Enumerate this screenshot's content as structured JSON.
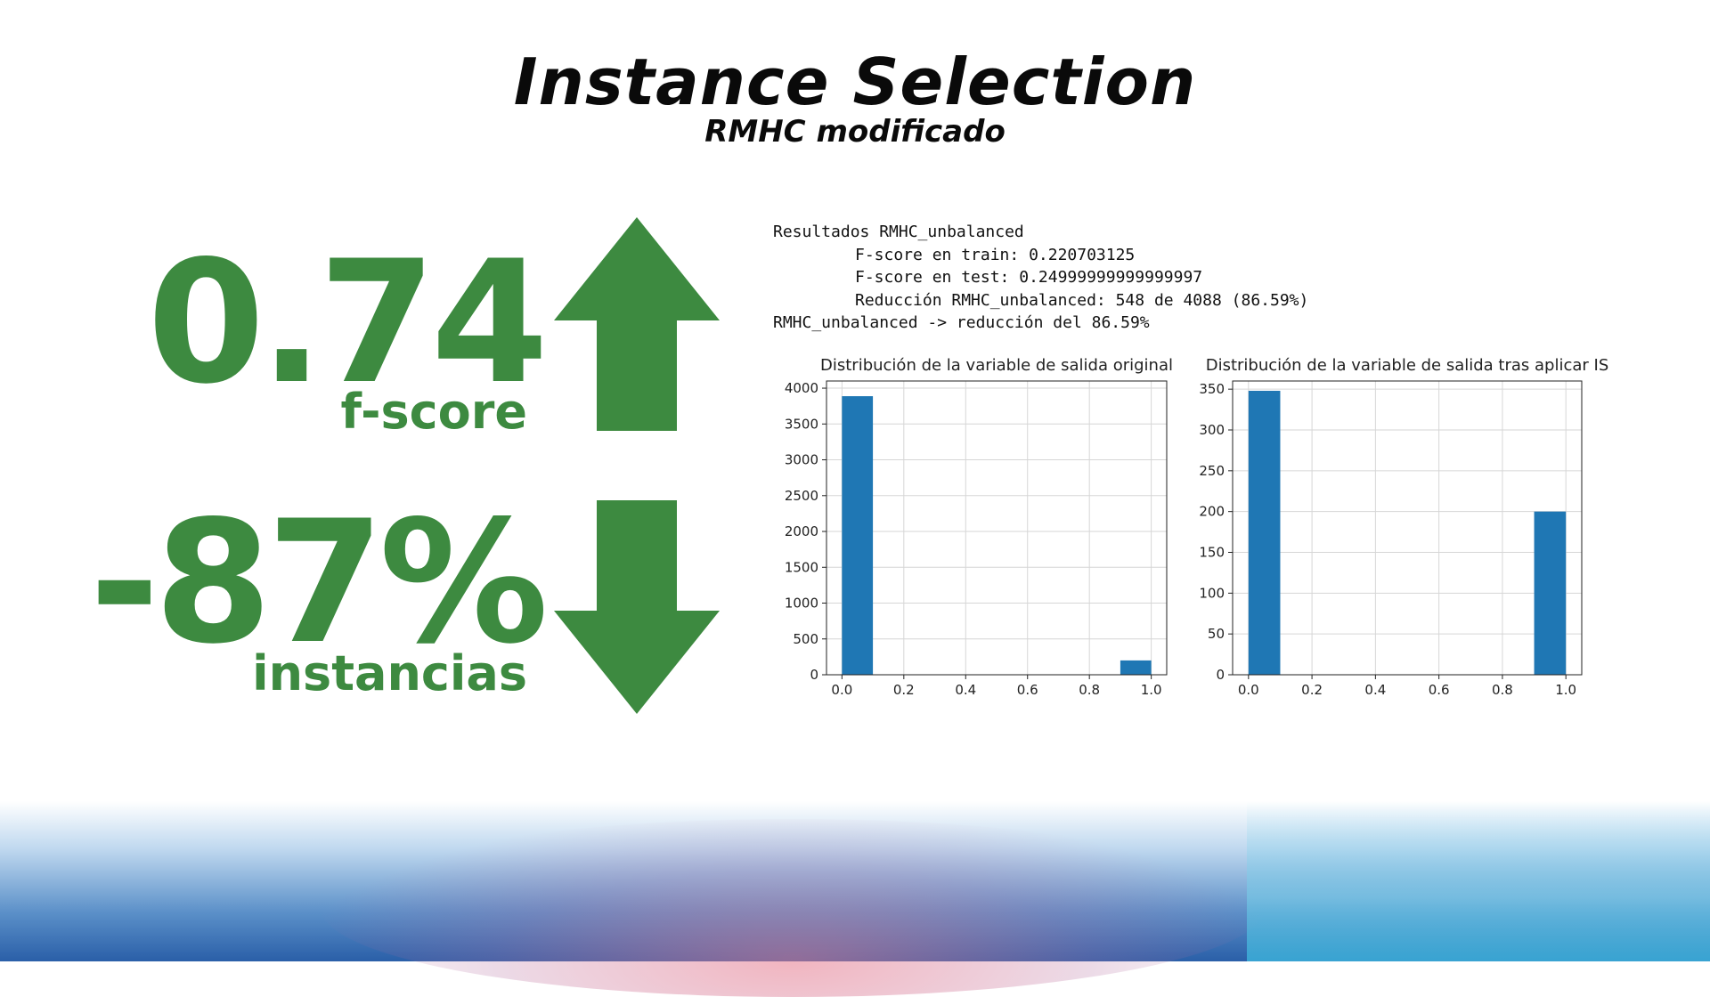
{
  "title": "Instance Selection",
  "subtitle": "RMHC modificado",
  "metrics": {
    "fscore_value": "0.74",
    "fscore_label": "f-score",
    "reduction_value": "-87%",
    "reduction_label": "instancias"
  },
  "console": {
    "line1": "Resultados RMHC_unbalanced",
    "line2": "F-score en train: 0.220703125",
    "line3": "F-score en test: 0.24999999999999997",
    "line4": "Reducción RMHC_unbalanced: 548 de 4088 (86.59%)",
    "line5": "RMHC_unbalanced -> reducción del 86.59%"
  },
  "colors": {
    "accent_green": "#3d8a40",
    "bar_blue": "#1f77b4"
  },
  "icons": {
    "up": "arrow-up-icon",
    "down": "arrow-down-icon"
  },
  "chart_data": [
    {
      "type": "bar",
      "title": "Distribución de la variable de salida original",
      "bins": [
        {
          "x0": 0.0,
          "x1": 0.1,
          "value": 3888
        },
        {
          "x0": 0.9,
          "x1": 1.0,
          "value": 200
        }
      ],
      "xlim": [
        -0.05,
        1.05
      ],
      "ylim": [
        0,
        4100
      ],
      "xticks": [
        0.0,
        0.2,
        0.4,
        0.6,
        0.8,
        1.0
      ],
      "xtick_labels": [
        "0.0",
        "0.2",
        "0.4",
        "0.6",
        "0.8",
        "1.0"
      ],
      "yticks": [
        0,
        500,
        1000,
        1500,
        2000,
        2500,
        3000,
        3500,
        4000
      ],
      "ytick_labels": [
        "0",
        "500",
        "1000",
        "1500",
        "2000",
        "2500",
        "3000",
        "3500",
        "4000"
      ],
      "grid": true
    },
    {
      "type": "bar",
      "title": "Distribución de la variable de salida tras aplicar IS",
      "bins": [
        {
          "x0": 0.0,
          "x1": 0.1,
          "value": 348
        },
        {
          "x0": 0.9,
          "x1": 1.0,
          "value": 200
        }
      ],
      "xlim": [
        -0.05,
        1.05
      ],
      "ylim": [
        0,
        360
      ],
      "xticks": [
        0.0,
        0.2,
        0.4,
        0.6,
        0.8,
        1.0
      ],
      "xtick_labels": [
        "0.0",
        "0.2",
        "0.4",
        "0.6",
        "0.8",
        "1.0"
      ],
      "yticks": [
        0,
        50,
        100,
        150,
        200,
        250,
        300,
        350
      ],
      "ytick_labels": [
        "0",
        "50",
        "100",
        "150",
        "200",
        "250",
        "300",
        "350"
      ],
      "grid": true
    }
  ]
}
